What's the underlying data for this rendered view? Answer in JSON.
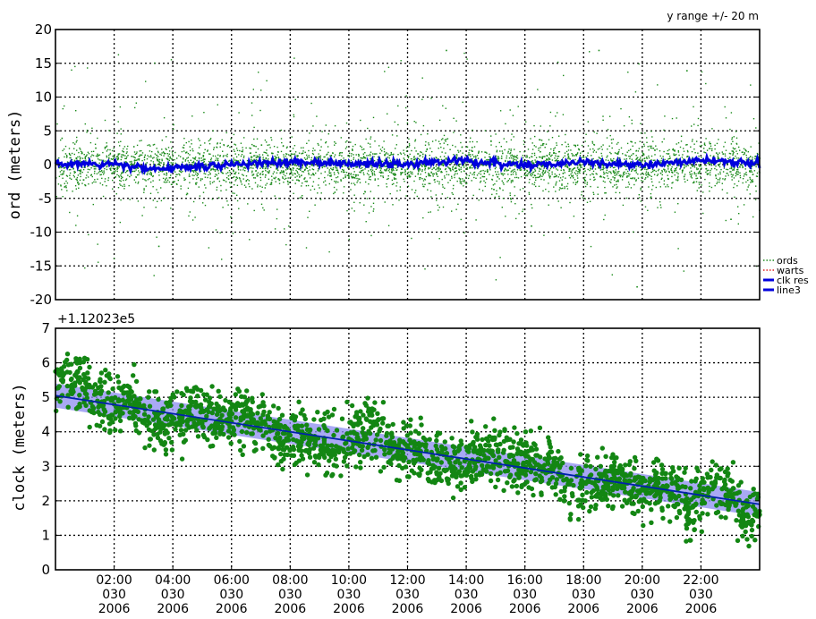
{
  "annotation": "y range +/- 20 m",
  "offset_label": "+1.12023e5",
  "legend": [
    {
      "label": "ords",
      "color": "#1e8c1e",
      "style": "dotted"
    },
    {
      "label": "warts",
      "color": "#e02020",
      "style": "dotted"
    },
    {
      "label": "clk res",
      "color": "#0000dd",
      "style": "solid"
    },
    {
      "label": "line3",
      "color": "#0000dd",
      "style": "solid"
    }
  ],
  "colors": {
    "ords": "#1a8a1a",
    "clock_points": "#138613",
    "clk_res": "#0000dd",
    "line3": "#0022aa",
    "band": "#8c8cf0"
  },
  "x_tick_labels": [
    {
      "time": "02:00",
      "day": "030",
      "year": "2006"
    },
    {
      "time": "04:00",
      "day": "030",
      "year": "2006"
    },
    {
      "time": "06:00",
      "day": "030",
      "year": "2006"
    },
    {
      "time": "08:00",
      "day": "030",
      "year": "2006"
    },
    {
      "time": "10:00",
      "day": "030",
      "year": "2006"
    },
    {
      "time": "12:00",
      "day": "030",
      "year": "2006"
    },
    {
      "time": "14:00",
      "day": "030",
      "year": "2006"
    },
    {
      "time": "16:00",
      "day": "030",
      "year": "2006"
    },
    {
      "time": "18:00",
      "day": "030",
      "year": "2006"
    },
    {
      "time": "20:00",
      "day": "030",
      "year": "2006"
    },
    {
      "time": "22:00",
      "day": "030",
      "year": "2006"
    }
  ],
  "chart_data": [
    {
      "type": "scatter",
      "ylabel": "ord (meters)",
      "xlim_hours": [
        0,
        24
      ],
      "ylim": [
        -20,
        20
      ],
      "y_ticks": [
        -20,
        -15,
        -10,
        -5,
        0,
        5,
        10,
        15,
        20
      ],
      "grid": true,
      "legend_position": "right",
      "series": [
        {
          "name": "ords",
          "x_hours": [
            0.2,
            1.0,
            2.3,
            3.5,
            4.0,
            5.5,
            7.0,
            9.5,
            11.2,
            13.3,
            14.7,
            16.2,
            18.5,
            19.8,
            21.5,
            23.0
          ],
          "y": [
            4.0,
            -3.0,
            2.0,
            -12.0,
            6.0,
            -2.0,
            3.0,
            -4.0,
            1.5,
            17.0,
            -1.0,
            -9.0,
            17.0,
            -18.0,
            14.0,
            -8.0
          ]
        },
        {
          "name": "clk res",
          "x_hours": [
            0,
            2,
            3.5,
            6,
            8,
            10,
            12,
            14,
            16,
            18,
            20,
            22,
            24
          ],
          "y": [
            0.3,
            0.0,
            -0.8,
            0.0,
            0.4,
            0.2,
            0.0,
            0.6,
            -0.2,
            0.3,
            0.0,
            0.6,
            0.1
          ]
        }
      ]
    },
    {
      "type": "scatter",
      "ylabel": "clock (meters)",
      "offset": "+1.12023e5",
      "xlim_hours": [
        0,
        24
      ],
      "ylim": [
        0,
        7
      ],
      "y_ticks": [
        0,
        1,
        2,
        3,
        4,
        5,
        6,
        7
      ],
      "grid": true,
      "series": [
        {
          "name": "ords",
          "x_hours": [
            0.2,
            1.0,
            2.0,
            3.2,
            4.0,
            6.0,
            8.0,
            10.0,
            12.0,
            14.0,
            16.0,
            18.0,
            20.0,
            21.5,
            23.0,
            24.0
          ],
          "y": [
            5.5,
            5.2,
            4.8,
            3.6,
            4.4,
            4.3,
            3.9,
            3.8,
            3.6,
            3.2,
            2.9,
            2.5,
            2.0,
            1.3,
            2.6,
            1.6
          ]
        },
        {
          "name": "line3",
          "x_hours": [
            0,
            24
          ],
          "y": [
            5.05,
            1.9
          ]
        }
      ]
    }
  ]
}
